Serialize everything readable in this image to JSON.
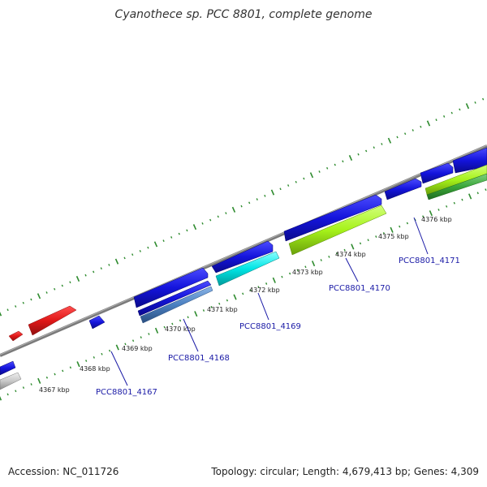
{
  "title": "Cyanothece sp. PCC 8801, complete genome",
  "footer": {
    "accession": "Accession: NC_011726",
    "summary": "Topology: circular; Length: 4,679,413 bp; Genes: 4,309"
  },
  "colors": {
    "backbone": "#808080",
    "ticks": "#2e8b2e",
    "gene_label": "#1a1aa6",
    "blue": "#1414dc",
    "red": "#e01818",
    "cyan": "#00e5e5",
    "lime": "#a6f21a",
    "green": "#3aa63a",
    "steel": "#4a7fc0",
    "gray": "#c8c8c8"
  },
  "kbp_labels": [
    "4367 kbp",
    "4368 kbp",
    "4369 kbp",
    "4370 kbp",
    "4371 kbp",
    "4372 kbp",
    "4373 kbp",
    "4374 kbp",
    "4375 kbp",
    "4376 kbp"
  ],
  "gene_labels": [
    "PCC8801_4167",
    "PCC8801_4168",
    "PCC8801_4169",
    "PCC8801_4170",
    "PCC8801_4171"
  ]
}
